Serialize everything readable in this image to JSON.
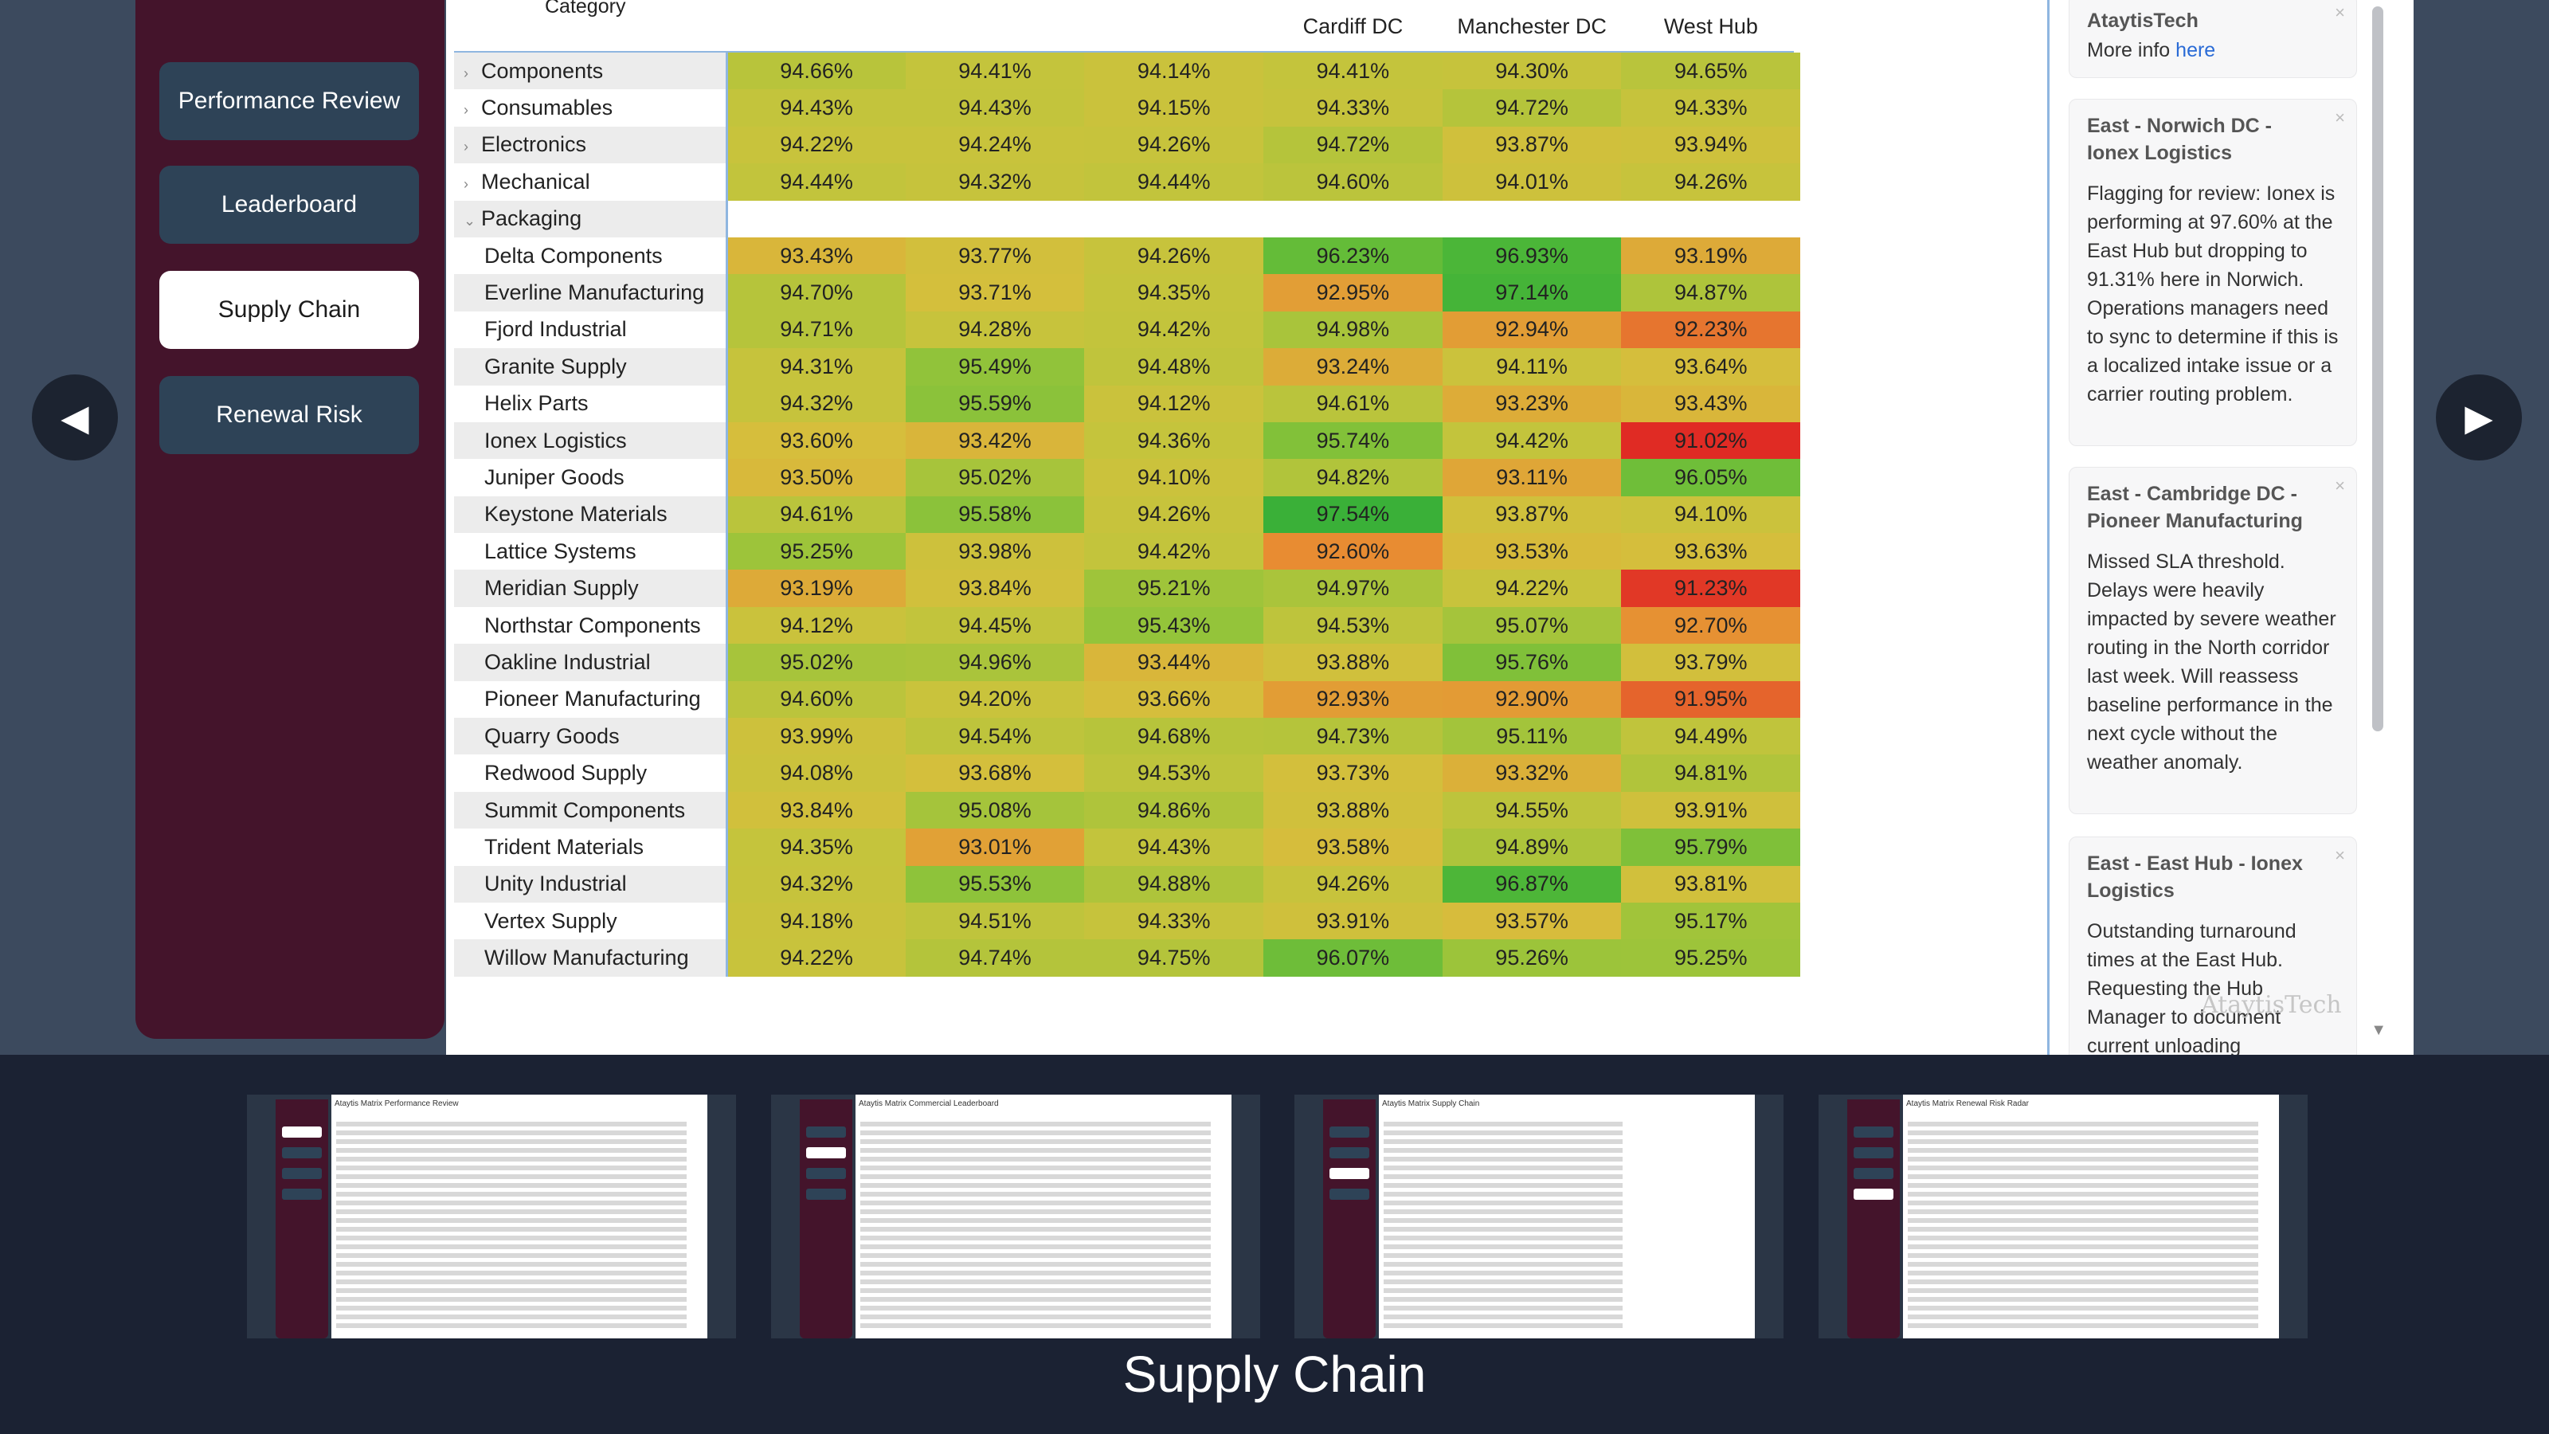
{
  "nav": {
    "prev_symbol": "◀",
    "next_symbol": "▶"
  },
  "sidebar": {
    "items": [
      {
        "label": "Performance Review"
      },
      {
        "label": "Leaderboard"
      },
      {
        "label": "Supply Chain",
        "active": true
      },
      {
        "label": "Renewal Risk"
      }
    ]
  },
  "matrix": {
    "category_header": "Category",
    "columns": [
      "",
      "",
      "",
      "Cardiff DC",
      "Manchester DC",
      "West Hub"
    ],
    "rows": [
      {
        "label": "Components",
        "kind": "cat",
        "expanded": false,
        "values": [
          "94.66%",
          "94.41%",
          "94.14%",
          "94.41%",
          "94.30%",
          "94.65%"
        ]
      },
      {
        "label": "Consumables",
        "kind": "cat",
        "expanded": false,
        "values": [
          "94.43%",
          "94.43%",
          "94.15%",
          "94.33%",
          "94.72%",
          "94.33%"
        ]
      },
      {
        "label": "Electronics",
        "kind": "cat",
        "expanded": false,
        "values": [
          "94.22%",
          "94.24%",
          "94.26%",
          "94.72%",
          "93.87%",
          "93.94%"
        ]
      },
      {
        "label": "Mechanical",
        "kind": "cat",
        "expanded": false,
        "values": [
          "94.44%",
          "94.32%",
          "94.44%",
          "94.60%",
          "94.01%",
          "94.26%"
        ]
      },
      {
        "label": "Packaging",
        "kind": "cat",
        "expanded": true,
        "values": []
      },
      {
        "label": "Delta Components",
        "kind": "sub",
        "values": [
          "93.43%",
          "93.77%",
          "94.26%",
          "96.23%",
          "96.93%",
          "93.19%"
        ]
      },
      {
        "label": "Everline Manufacturing",
        "kind": "sub",
        "values": [
          "94.70%",
          "93.71%",
          "94.35%",
          "92.95%",
          "97.14%",
          "94.87%"
        ]
      },
      {
        "label": "Fjord Industrial",
        "kind": "sub",
        "values": [
          "94.71%",
          "94.28%",
          "94.42%",
          "94.98%",
          "92.94%",
          "92.23%"
        ]
      },
      {
        "label": "Granite Supply",
        "kind": "sub",
        "values": [
          "94.31%",
          "95.49%",
          "94.48%",
          "93.24%",
          "94.11%",
          "93.64%"
        ]
      },
      {
        "label": "Helix Parts",
        "kind": "sub",
        "values": [
          "94.32%",
          "95.59%",
          "94.12%",
          "94.61%",
          "93.23%",
          "93.43%"
        ]
      },
      {
        "label": "Ionex Logistics",
        "kind": "sub",
        "values": [
          "93.60%",
          "93.42%",
          "94.36%",
          "95.74%",
          "94.42%",
          "91.02%"
        ]
      },
      {
        "label": "Juniper Goods",
        "kind": "sub",
        "values": [
          "93.50%",
          "95.02%",
          "94.10%",
          "94.82%",
          "93.11%",
          "96.05%"
        ]
      },
      {
        "label": "Keystone Materials",
        "kind": "sub",
        "values": [
          "94.61%",
          "95.58%",
          "94.26%",
          "97.54%",
          "93.87%",
          "94.10%"
        ]
      },
      {
        "label": "Lattice Systems",
        "kind": "sub",
        "values": [
          "95.25%",
          "93.98%",
          "94.42%",
          "92.60%",
          "93.53%",
          "93.63%"
        ]
      },
      {
        "label": "Meridian Supply",
        "kind": "sub",
        "values": [
          "93.19%",
          "93.84%",
          "95.21%",
          "94.97%",
          "94.22%",
          "91.23%"
        ]
      },
      {
        "label": "Northstar Components",
        "kind": "sub",
        "values": [
          "94.12%",
          "94.45%",
          "95.43%",
          "94.53%",
          "95.07%",
          "92.70%"
        ]
      },
      {
        "label": "Oakline Industrial",
        "kind": "sub",
        "values": [
          "95.02%",
          "94.96%",
          "93.44%",
          "93.88%",
          "95.76%",
          "93.79%"
        ]
      },
      {
        "label": "Pioneer Manufacturing",
        "kind": "sub",
        "values": [
          "94.60%",
          "94.20%",
          "93.66%",
          "92.93%",
          "92.90%",
          "91.95%"
        ]
      },
      {
        "label": "Quarry Goods",
        "kind": "sub",
        "values": [
          "93.99%",
          "94.54%",
          "94.68%",
          "94.73%",
          "95.11%",
          "94.49%"
        ]
      },
      {
        "label": "Redwood Supply",
        "kind": "sub",
        "values": [
          "94.08%",
          "93.68%",
          "94.53%",
          "93.73%",
          "93.32%",
          "94.81%"
        ]
      },
      {
        "label": "Summit Components",
        "kind": "sub",
        "values": [
          "93.84%",
          "95.08%",
          "94.86%",
          "93.88%",
          "94.55%",
          "93.91%"
        ]
      },
      {
        "label": "Trident Materials",
        "kind": "sub",
        "values": [
          "94.35%",
          "93.01%",
          "94.43%",
          "93.58%",
          "94.89%",
          "95.79%"
        ]
      },
      {
        "label": "Unity Industrial",
        "kind": "sub",
        "values": [
          "94.32%",
          "95.53%",
          "94.88%",
          "94.26%",
          "96.87%",
          "93.81%"
        ]
      },
      {
        "label": "Vertex Supply",
        "kind": "sub",
        "values": [
          "94.18%",
          "94.51%",
          "94.33%",
          "93.91%",
          "93.57%",
          "95.17%"
        ]
      },
      {
        "label": "Willow Manufacturing",
        "kind": "sub",
        "values": [
          "94.22%",
          "94.74%",
          "94.75%",
          "96.07%",
          "95.26%",
          "95.25%"
        ]
      }
    ],
    "color_scale": {
      "low": "#e02a24",
      "mid_low": "#e89a3a",
      "mid": "#d4c23c",
      "mid_high": "#9cc43a",
      "high": "#3cb43a"
    }
  },
  "comments": {
    "cards": [
      {
        "title": "AtaytisTech",
        "more_prefix": "More info ",
        "link_text": "here"
      },
      {
        "title": "East - Norwich DC - Ionex Logistics",
        "body": "Flagging for review: Ionex is performing at 97.60% at the East Hub but dropping to 91.31% here in Norwich. Operations managers need to sync to determine if this is a localized intake issue or a carrier routing problem."
      },
      {
        "title": "East - Cambridge DC - Pioneer Manufacturing",
        "body": "Missed SLA threshold. Delays were heavily impacted by severe weather routing in the North corridor last week. Will reassess baseline performance in the next cycle without the weather anomaly."
      },
      {
        "title": "East - East Hub - Ionex Logistics",
        "body": "Outstanding turnaround times at the East Hub. Requesting the Hub Manager to document current unloading"
      }
    ],
    "close_symbol": "×",
    "watermark": "AtaytisTech"
  },
  "thumbnails": [
    {
      "title": "Ataytis Matrix Performance Review",
      "active_index": 0
    },
    {
      "title": "Ataytis Matrix Commercial Leaderboard",
      "active_index": 1
    },
    {
      "title": "Ataytis Matrix Supply Chain",
      "active_index": 2
    },
    {
      "title": "Ataytis Matrix Renewal Risk Radar",
      "active_index": 3
    }
  ],
  "caption": "Supply Chain"
}
